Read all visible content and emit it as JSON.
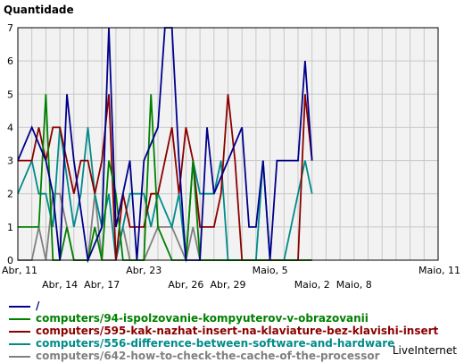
{
  "chart_data": {
    "type": "line",
    "title": "",
    "ylabel": "Quantidade",
    "xlabel": "",
    "ylim": [
      0,
      7
    ],
    "yticks": [
      0,
      1,
      2,
      3,
      4,
      5,
      6,
      7
    ],
    "grid": true,
    "x_range": [
      0,
      30
    ],
    "xticks_upper": [
      {
        "x": 0,
        "label": "Abr, 11"
      },
      {
        "x": 9,
        "label": "Abr, 23"
      },
      {
        "x": 18,
        "label": "Maio, 5"
      },
      {
        "x": 30,
        "label": "Maio, 11"
      }
    ],
    "xticks_lower": [
      {
        "x": 3,
        "label": "Abr, 14"
      },
      {
        "x": 6,
        "label": "Abr, 17"
      },
      {
        "x": 12,
        "label": "Abr, 26"
      },
      {
        "x": 15,
        "label": "Abr, 29"
      },
      {
        "x": 21,
        "label": "Maio, 2"
      },
      {
        "x": 24,
        "label": "Maio, 8"
      }
    ],
    "series": [
      {
        "name": "/",
        "color": "#00008b",
        "points": [
          [
            0,
            3
          ],
          [
            1,
            4
          ],
          [
            2,
            3
          ],
          [
            2.5,
            2
          ],
          [
            3,
            0
          ],
          [
            3.5,
            5
          ],
          [
            4,
            3
          ],
          [
            5,
            0
          ],
          [
            6,
            1
          ],
          [
            6.5,
            7
          ],
          [
            7,
            1
          ],
          [
            8,
            3
          ],
          [
            8.5,
            0
          ],
          [
            9,
            3
          ],
          [
            10,
            4
          ],
          [
            10.5,
            7
          ],
          [
            11,
            7
          ],
          [
            11.5,
            3
          ],
          [
            12,
            0
          ],
          [
            13,
            0
          ],
          [
            13.5,
            4
          ],
          [
            14,
            2
          ],
          [
            15,
            3
          ],
          [
            16,
            4
          ],
          [
            16.5,
            1
          ],
          [
            17,
            1
          ],
          [
            17.5,
            3
          ],
          [
            18,
            0
          ],
          [
            18.5,
            3
          ],
          [
            19,
            3
          ],
          [
            20,
            3
          ],
          [
            20.5,
            6
          ],
          [
            21,
            3
          ]
        ]
      },
      {
        "name": "computers/94-ispolzovanie-kompyuterov-v-obrazovanii",
        "color": "#008000",
        "points": [
          [
            0,
            1
          ],
          [
            1,
            1
          ],
          [
            1.5,
            1
          ],
          [
            2,
            5
          ],
          [
            2.5,
            0
          ],
          [
            3,
            0
          ],
          [
            3.5,
            1
          ],
          [
            4,
            0
          ],
          [
            5,
            0
          ],
          [
            5.5,
            1
          ],
          [
            6,
            0
          ],
          [
            6.5,
            3
          ],
          [
            7,
            2
          ],
          [
            7.5,
            0
          ],
          [
            8,
            0
          ],
          [
            9,
            0
          ],
          [
            9.5,
            5
          ],
          [
            10,
            1
          ],
          [
            11,
            0
          ],
          [
            12,
            0
          ],
          [
            12.5,
            3
          ],
          [
            13,
            0
          ],
          [
            14,
            0
          ],
          [
            15,
            0
          ],
          [
            16,
            0
          ],
          [
            17,
            0
          ],
          [
            18,
            0
          ],
          [
            19,
            0
          ],
          [
            20,
            0
          ],
          [
            21,
            0
          ]
        ]
      },
      {
        "name": "computers/595-kak-nazhat-insert-na-klaviature-bez-klavishi-insert",
        "color": "#8b0000",
        "points": [
          [
            0,
            3
          ],
          [
            1,
            3
          ],
          [
            1.5,
            4
          ],
          [
            2,
            3
          ],
          [
            2.5,
            4
          ],
          [
            3,
            4
          ],
          [
            4,
            2
          ],
          [
            4.5,
            3
          ],
          [
            5,
            3
          ],
          [
            5.5,
            2
          ],
          [
            6,
            3
          ],
          [
            6.5,
            5
          ],
          [
            7,
            0
          ],
          [
            7.5,
            2
          ],
          [
            8,
            1
          ],
          [
            9,
            1
          ],
          [
            9.5,
            2
          ],
          [
            10,
            2
          ],
          [
            11,
            4
          ],
          [
            11.5,
            2
          ],
          [
            12,
            4
          ],
          [
            12.5,
            3
          ],
          [
            13,
            1
          ],
          [
            14,
            1
          ],
          [
            14.5,
            2
          ],
          [
            15,
            5
          ],
          [
            15.5,
            3
          ],
          [
            16,
            0
          ],
          [
            17,
            0
          ],
          [
            18,
            0
          ],
          [
            19,
            0
          ],
          [
            20,
            0
          ],
          [
            20.5,
            5
          ],
          [
            21,
            3
          ]
        ]
      },
      {
        "name": "computers/556-difference-between-software-and-hardware",
        "color": "#008b8b",
        "points": [
          [
            0,
            2
          ],
          [
            1,
            3
          ],
          [
            1.5,
            2
          ],
          [
            2,
            2
          ],
          [
            2.5,
            1
          ],
          [
            3,
            4
          ],
          [
            4,
            1
          ],
          [
            4.5,
            2
          ],
          [
            5,
            4
          ],
          [
            5.5,
            2
          ],
          [
            6,
            1
          ],
          [
            6.5,
            2
          ],
          [
            7,
            0
          ],
          [
            8,
            2
          ],
          [
            9,
            2
          ],
          [
            9.5,
            1
          ],
          [
            10,
            2
          ],
          [
            11,
            1
          ],
          [
            11.5,
            2
          ],
          [
            12,
            0
          ],
          [
            12.5,
            3
          ],
          [
            13,
            2
          ],
          [
            14,
            2
          ],
          [
            14.5,
            3
          ],
          [
            15,
            0
          ],
          [
            16,
            0
          ],
          [
            17,
            0
          ],
          [
            17.5,
            3
          ],
          [
            18,
            0
          ],
          [
            19,
            0
          ],
          [
            20,
            2
          ],
          [
            20.5,
            3
          ],
          [
            21,
            2
          ]
        ]
      },
      {
        "name": "computers/642-how-to-check-the-cache-of-the-processor",
        "color": "#808080",
        "points": [
          [
            0,
            0
          ],
          [
            1,
            0
          ],
          [
            1.5,
            1
          ],
          [
            2,
            0
          ],
          [
            2.5,
            2
          ],
          [
            3,
            2
          ],
          [
            3.5,
            1
          ],
          [
            4,
            0
          ],
          [
            5,
            0
          ],
          [
            5.5,
            2
          ],
          [
            6,
            0
          ],
          [
            7,
            0
          ],
          [
            7.5,
            1
          ],
          [
            8,
            0
          ],
          [
            9,
            0
          ],
          [
            10,
            1
          ],
          [
            11,
            1
          ],
          [
            12,
            0
          ],
          [
            12.5,
            1
          ],
          [
            13,
            0
          ],
          [
            14,
            0
          ],
          [
            15,
            0
          ],
          [
            16,
            0
          ],
          [
            17,
            0
          ],
          [
            18,
            0
          ],
          [
            19,
            0
          ],
          [
            20,
            0
          ],
          [
            21,
            0
          ]
        ]
      }
    ]
  },
  "brand": "LiveInternet"
}
